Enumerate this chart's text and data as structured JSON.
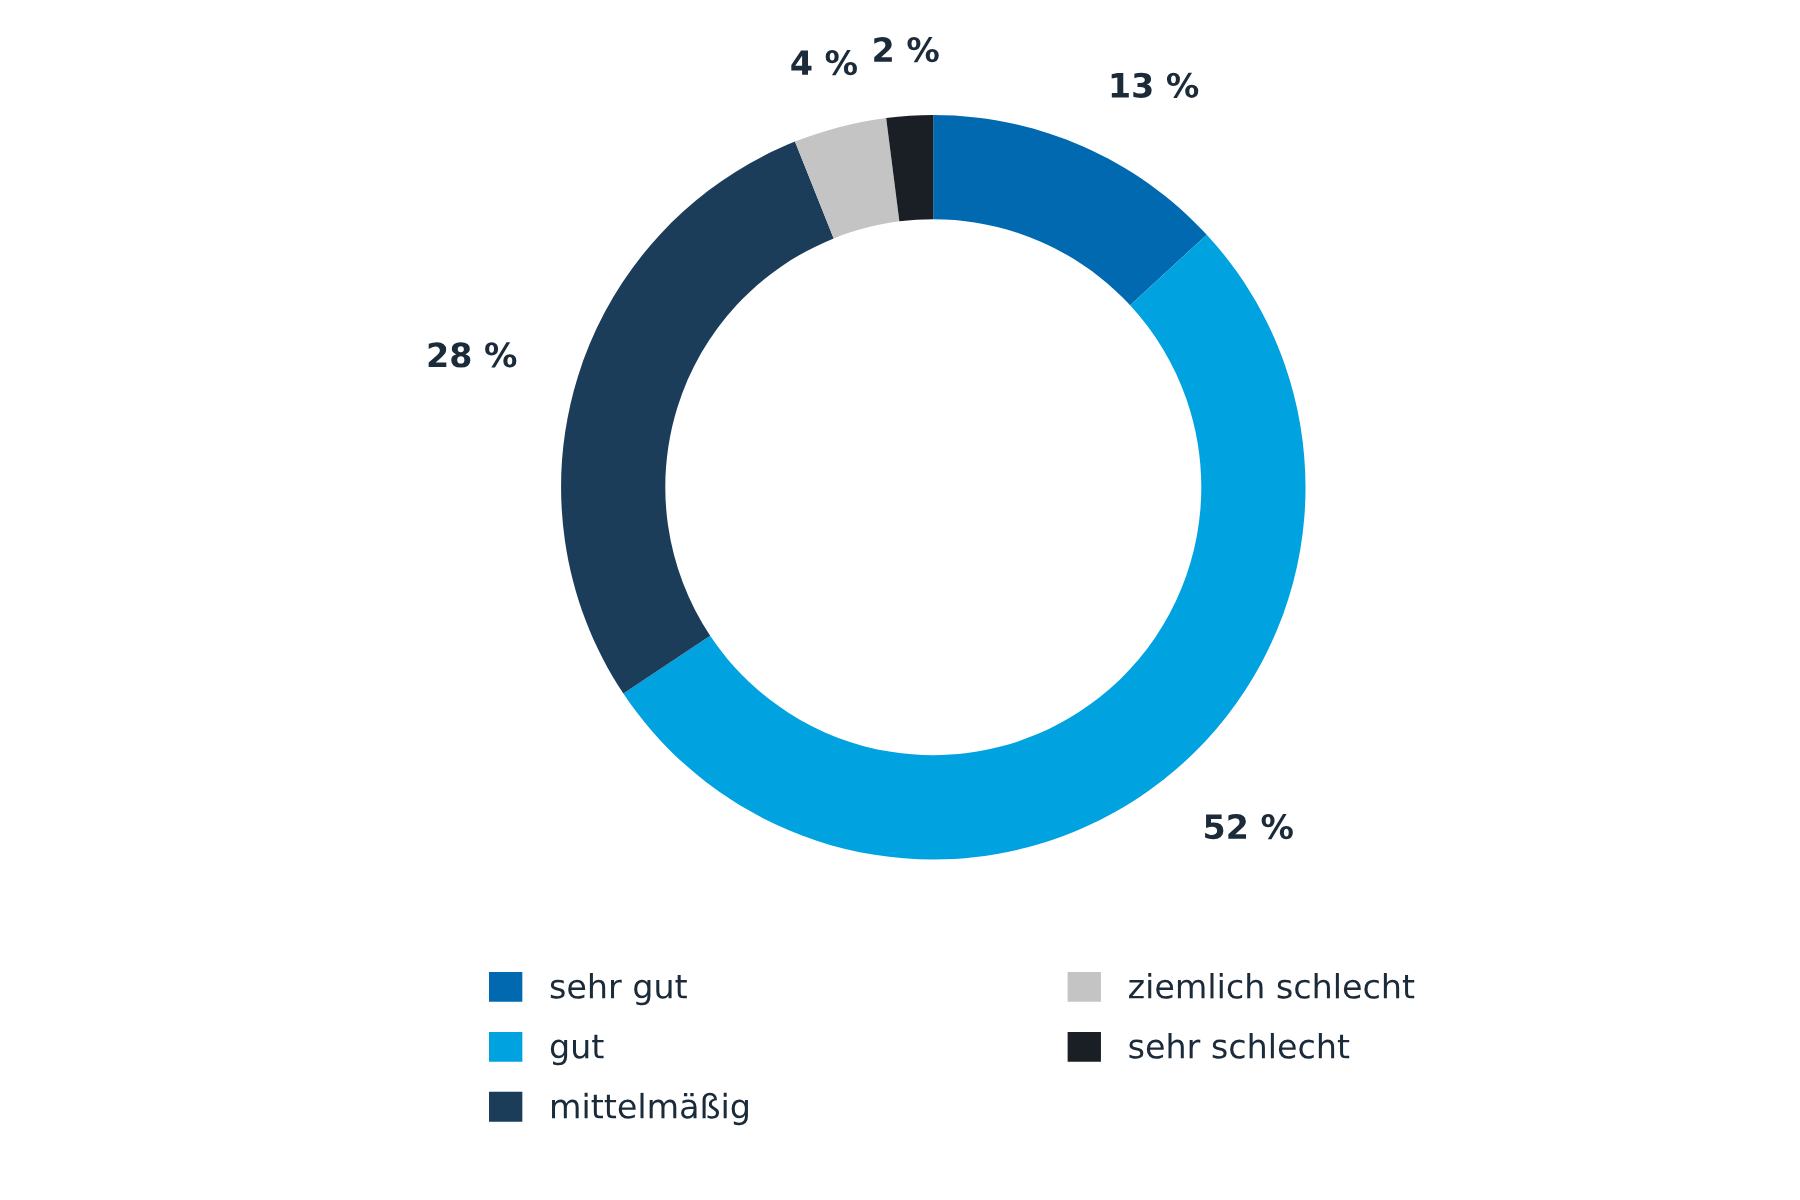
{
  "chart_data": {
    "type": "donut",
    "categories": [
      "sehr gut",
      "gut",
      "mittelmäßig",
      "ziemlich schlecht",
      "sehr schlecht"
    ],
    "values": [
      13,
      52,
      28,
      4,
      2
    ],
    "colors": [
      "#0069b0",
      "#00a3e0",
      "#1c3d5a",
      "#c4c4c4",
      "#1a1f26"
    ],
    "value_labels": [
      "13 %",
      "52 %",
      "28 %",
      "4 %",
      "2 %"
    ],
    "legend": "bottom"
  }
}
